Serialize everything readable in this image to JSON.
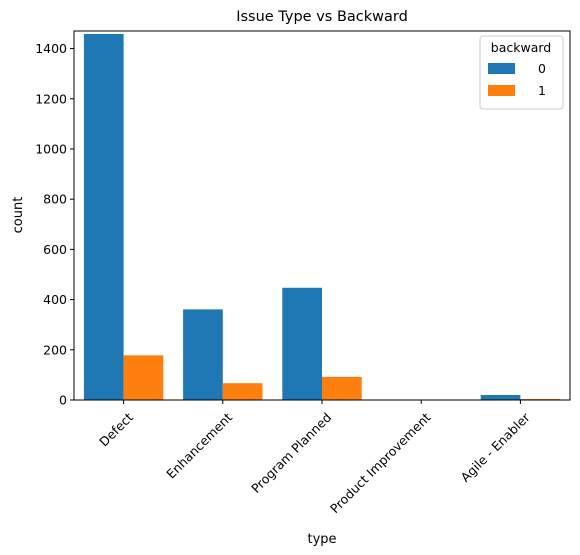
{
  "chart_data": {
    "type": "bar",
    "title": "Issue Type vs Backward",
    "xlabel": "type",
    "ylabel": "count",
    "categories": [
      "Defect",
      "Enhancement",
      "Program Planned",
      "Product Improvement",
      "Agile - Enabler"
    ],
    "series": [
      {
        "name": "0",
        "color": "#1f77b4",
        "values": [
          1458,
          361,
          447,
          1,
          20
        ]
      },
      {
        "name": "1",
        "color": "#ff7f0e",
        "values": [
          178,
          67,
          92,
          0,
          4
        ]
      }
    ],
    "ylim": [
      0,
      1470
    ],
    "yticks": [
      0,
      200,
      400,
      600,
      800,
      1000,
      1200,
      1400
    ],
    "legend": {
      "title": "backward",
      "position": "top-right"
    },
    "grid": false
  }
}
